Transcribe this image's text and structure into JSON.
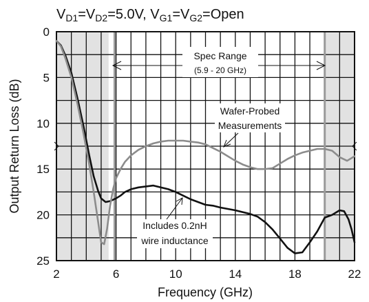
{
  "chart_data": {
    "type": "line",
    "title_parts": [
      {
        "t": "V",
        "sub": false
      },
      {
        "t": "D1",
        "sub": true
      },
      {
        "t": "=V",
        "sub": false
      },
      {
        "t": "D2",
        "sub": true
      },
      {
        "t": "=5.0V, V",
        "sub": false
      },
      {
        "t": "G1",
        "sub": true
      },
      {
        "t": "=V",
        "sub": false
      },
      {
        "t": "G2",
        "sub": true
      },
      {
        "t": "=Open",
        "sub": false
      }
    ],
    "xlabel": "Frequency (GHz)",
    "ylabel": "Output Return Loss (dB)",
    "xlim": [
      2,
      22
    ],
    "ylim": [
      0,
      25
    ],
    "y_inverted": true,
    "xticks": [
      2,
      6,
      10,
      14,
      18,
      22
    ],
    "yticks": [
      0,
      5,
      10,
      15,
      20,
      25
    ],
    "grid": true,
    "shaded_regions": [
      [
        2,
        5.5
      ],
      [
        20,
        22
      ]
    ],
    "spec_lines": [
      5.9,
      20
    ],
    "annotations": {
      "spec_range": "Spec Range",
      "spec_range_sub": "(5.9 - 20 GHz)",
      "wafer_probed_1": "Wafer-Probed",
      "wafer_probed_2": "Measurements",
      "includes_1": "Includes 0.2nH",
      "includes_2": "wire inductance"
    },
    "series": [
      {
        "color": "#111111",
        "x": [
          2,
          2.3,
          2.6,
          3.0,
          3.4,
          3.8,
          4.2,
          4.5,
          4.8,
          5.0,
          5.3,
          5.6,
          6.0,
          6.3,
          6.6,
          7.0,
          7.5,
          8.0,
          8.5,
          9.0,
          9.5,
          10.0,
          10.5,
          11.0,
          11.5,
          12.0,
          12.5,
          13.0,
          14.0,
          15.0,
          15.5,
          16.0,
          16.5,
          17.0,
          17.5,
          18.0,
          18.5,
          19.0,
          19.5,
          20.0,
          20.5,
          20.8,
          21.0,
          21.3,
          21.6,
          21.8,
          22.0
        ],
        "values": [
          1.0,
          1.5,
          2.6,
          4.5,
          7.2,
          10.2,
          13.5,
          15.8,
          17.4,
          18.2,
          18.6,
          18.5,
          18.2,
          17.9,
          17.5,
          17.2,
          17.0,
          16.9,
          16.8,
          17.0,
          17.2,
          17.5,
          17.9,
          18.3,
          18.6,
          18.9,
          19.0,
          19.2,
          19.5,
          19.9,
          20.2,
          20.8,
          21.6,
          22.6,
          23.6,
          24.2,
          24.1,
          23.0,
          21.8,
          20.3,
          20.0,
          19.7,
          19.5,
          19.6,
          20.5,
          21.6,
          23.0
        ]
      },
      {
        "color": "#8c8c8c",
        "x": [
          2,
          2.3,
          2.6,
          3.0,
          3.4,
          3.8,
          4.2,
          4.5,
          4.8,
          5.0,
          5.2,
          5.4,
          5.6,
          5.8,
          6.0,
          6.3,
          6.6,
          7.0,
          7.5,
          8.0,
          8.5,
          9.0,
          9.5,
          10.0,
          10.5,
          11.0,
          11.5,
          12.0,
          12.5,
          13.0,
          13.5,
          14.0,
          14.5,
          15.0,
          15.5,
          16.0,
          16.5,
          17.0,
          17.5,
          18.0,
          18.5,
          19.0,
          19.5,
          20.0,
          20.5,
          21.0,
          21.5,
          22.0
        ],
        "values": [
          1.0,
          1.6,
          2.9,
          5.0,
          7.8,
          11.0,
          14.5,
          17.5,
          20.8,
          23.0,
          23.2,
          21.5,
          19.0,
          17.2,
          16.0,
          15.0,
          14.2,
          13.5,
          12.9,
          12.5,
          12.2,
          12.0,
          11.9,
          11.9,
          11.9,
          12.0,
          12.1,
          12.3,
          12.7,
          13.1,
          13.6,
          14.1,
          14.5,
          14.8,
          15.0,
          15.0,
          14.9,
          14.4,
          13.9,
          13.5,
          13.2,
          13.0,
          12.8,
          12.8,
          13.0,
          13.7,
          14.1,
          13.6
        ]
      }
    ]
  }
}
